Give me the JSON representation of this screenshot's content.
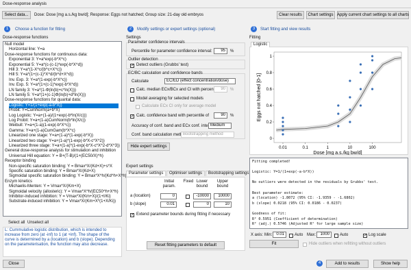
{
  "window_title": "Dose-response analysis",
  "toolbar": {
    "select_data": "Select data...",
    "info": "Dose: Dose [mg a.s./kg bw/d]; Response: Eggs not hatched; Group size: 21-day old embryos",
    "clear": "Clear results",
    "chart_settings": "Chart settings",
    "apply_all": "Apply current chart settings to all charts"
  },
  "step1": {
    "number": "1",
    "title": "Choose a function for fitting",
    "list_label": "Dose-response functions",
    "groups": [
      {
        "header": "Null model",
        "items": [
          "Horizontal line: Y=a"
        ]
      },
      {
        "header": "Dose-response functions for continuous data:",
        "items": [
          "Exponential 3: Y=a*exp(-b*X^c)",
          "Exponential 5: Y=a*(c-(c-1)*exp(-b*X^d))",
          "Hill 3: Y=a*(1-X^c/(b^c+X^c))",
          "Hill 5: Y=a*(1+(c-1)*X^d/(b^d+X^d))",
          "Inv. Exp. 3: Y=a*(1-exp(-b*X^c))",
          "Inv. Exp. 5: Y=a*(1+(c-1)*exp(-b*X^d))",
          "LN family 3: Y=a*(1-Φ(ln(b)+c*ln(X)))",
          "LN family 5: Y=a*(1+(c-1)Φ(ln(b)+d*ln(X)))"
        ]
      },
      {
        "header": "Dose-response functions for quantal data:",
        "items": [
          "Logistic: Y=1/(1+exp(-a-b*X))",
          "Probit: Y=CumNorm(a+b*X)",
          "Log Logistic: Y=a+(1-a)/(1+exp(-b*ln(X/c)))",
          "Log Probit: Y=a+(1-a)CumNorm(b*ln(X/c))",
          "Weibull: Y=a+(1-a)(1-exp(-b*X^c))",
          "Gamma: Y=a+(1-a)CumGam(b*X^c)",
          "Linearized one stage: Y=a+(1-a)*(1-exp(-b*X))",
          "Linearized two stage: Y=a+(1-a)*(1-exp(-b*X-c*X^2))",
          "Linearized three stage: Y=a+(1-a)*(1-exp(-b*X-c*X^2-d*X^3))"
        ]
      },
      {
        "header": "General dose-response analysis for stimulation and inhibition",
        "items": [
          "Universal Hill equation: Y = B+(T-B)/(1+(EC50/X)^h)"
        ]
      },
      {
        "header": "Receptor binding",
        "items": [
          "Non-specific saturation binding: Y = Bmax*X/(Kd+X)+s*X",
          "Specific saturation binding: Y = Bmax*X/(Kd+X)",
          "Sigmoidal specific saturation binding: Y = Bmax*X^h/(Kd^h+X^h)"
        ]
      },
      {
        "header": "Enzym kinetics",
        "items": [
          "Michaelis-Menten: Y = Vmax*X/(Km+X)",
          "Sigmoidal velocity (allosteric): Y = Vmax*X^h/(EC50^h+X^h)",
          "Inhibitor-induced inhibition: Y = Vmax*X/(Km+X)/(1+I/Ki)",
          "Substrate-induced inhibition: Y = Vmax*X/(Km+X*(1+X/Ki))"
        ]
      }
    ],
    "select_all": "Select all",
    "unselect_all": "Unselect all",
    "description": "L: Cummulative logistic distribution, which is intended to increase from zero (at -inf) to 1 (at +inf). The shape of the curve is determined by a (location) and b (slope). Depending on the parameterisation, the function may also decrease.",
    "close": "Close"
  },
  "step2": {
    "number": "2",
    "title": "Modify settings or expert settings (optional)",
    "settings_label": "Settings",
    "param_ci": {
      "title": "Parameter confidence intervals",
      "label": "Percentile for parameter confidence interval:",
      "value": "95",
      "unit": "%"
    },
    "outlier": {
      "title": "Outlier detection",
      "label": "Detect outliers (Grubbs' test)"
    },
    "ec": {
      "title": "EC/BC calculation and confidence bands",
      "calculate": "Calculate",
      "calculate_value": "EC/ED (effect concentration/dose)",
      "median": "Calc. median ECx/BCx and CI with percentile of",
      "median_value": "90",
      "averaging": "Model averaging for selected models",
      "avg_only": "Calculate ECx CI only for average model",
      "band": "Calc. confidence band with percentile of",
      "band_value": "90",
      "unit": "%",
      "accuracy": "Accuracy of conf. band and ECx conf. intervals:",
      "accuracy_value": "Medium",
      "method": "Conf. band calculation method:",
      "method_value": "Bootstrapping method"
    },
    "hide_expert": "Hide expert settings",
    "expert_label": "Expert settings",
    "tabs": [
      "Parameter settings",
      "Optimiser settings",
      "Bootstrapping settings"
    ],
    "table": {
      "headers": [
        "Initial param.",
        "Fixed",
        "Lower bound",
        "Upper bound"
      ],
      "rows": [
        [
          "a (location)",
          "0",
          "-10000",
          "10000"
        ],
        [
          "b (slope)",
          "0.01",
          "0",
          "10"
        ]
      ]
    },
    "extend": "Extend parameter bounds during fitting if necessary",
    "reset": "Reset fitting parameters to default"
  },
  "step3": {
    "number": "3",
    "title": "Start fitting and view results",
    "fitting_label": "Fitting",
    "tab": "Logistic",
    "plot": {
      "xlabel": "Dose [mg a.s./kg bw/d]",
      "ylabel": "Eggs not hatched [0-1]",
      "xlim": [
        0.004,
        2000
      ],
      "ylim": [
        -0.05,
        1.05
      ],
      "log_x": true,
      "xticks": [
        0.01,
        0.1,
        1,
        10,
        100
      ],
      "yticks": [
        0,
        0.2,
        0.4,
        0.6,
        0.8,
        1
      ],
      "point_color": "#3a6fb5",
      "curve_color": "#555555",
      "x": [
        0.01,
        0.01,
        0.01,
        0.01,
        0.01,
        3,
        3,
        3,
        10,
        10,
        10,
        10,
        30,
        30,
        30,
        30,
        100,
        100,
        100,
        100
      ],
      "y": [
        0.05,
        0.1,
        0.15,
        0.2,
        0.25,
        0.15,
        0.3,
        0.4,
        0.2,
        0.35,
        0.5,
        0.7,
        0.4,
        0.6,
        0.8,
        0.9,
        0.6,
        0.8,
        0.95,
        1
      ],
      "curve_x": [
        0.005,
        0.01,
        0.1,
        1,
        3,
        10,
        30,
        100,
        300,
        1000,
        2000
      ],
      "curve_y": [
        0.1,
        0.11,
        0.12,
        0.15,
        0.2,
        0.3,
        0.5,
        0.75,
        0.9,
        0.97,
        0.98
      ]
    },
    "output": [
      "Fitting completed!",
      "",
      "    Logistic: Y=1/(1+exp(-a-b*X))",
      "",
      "No outliers were detected in the residuals by Grubbs' test.",
      "",
      "Best parameter estimate:",
      "a (location)   -1.8072   (95% CI: -1.9359 - -1.6802)",
      "b (slope)       0.0218   (95% CI:  0.0186 -  0.0237)",
      "",
      "Goodness of fit:",
      "R²         0.5951   (Coefficient of determination)",
      "R² (adj.)  0.5746   (Adjusted R² for large sample size)"
    ],
    "x_axis": "X axis:",
    "min": "Min:",
    "min_value": "0.01",
    "auto": "Auto",
    "max": "Max:",
    "max_value": "1000",
    "log_scale": "Log scale",
    "fit": "Fit",
    "hide_outliers": "Hide outliers when refitting without outliers"
  },
  "step4": {
    "number": "4",
    "add": "Add to results",
    "help": "Show help"
  }
}
